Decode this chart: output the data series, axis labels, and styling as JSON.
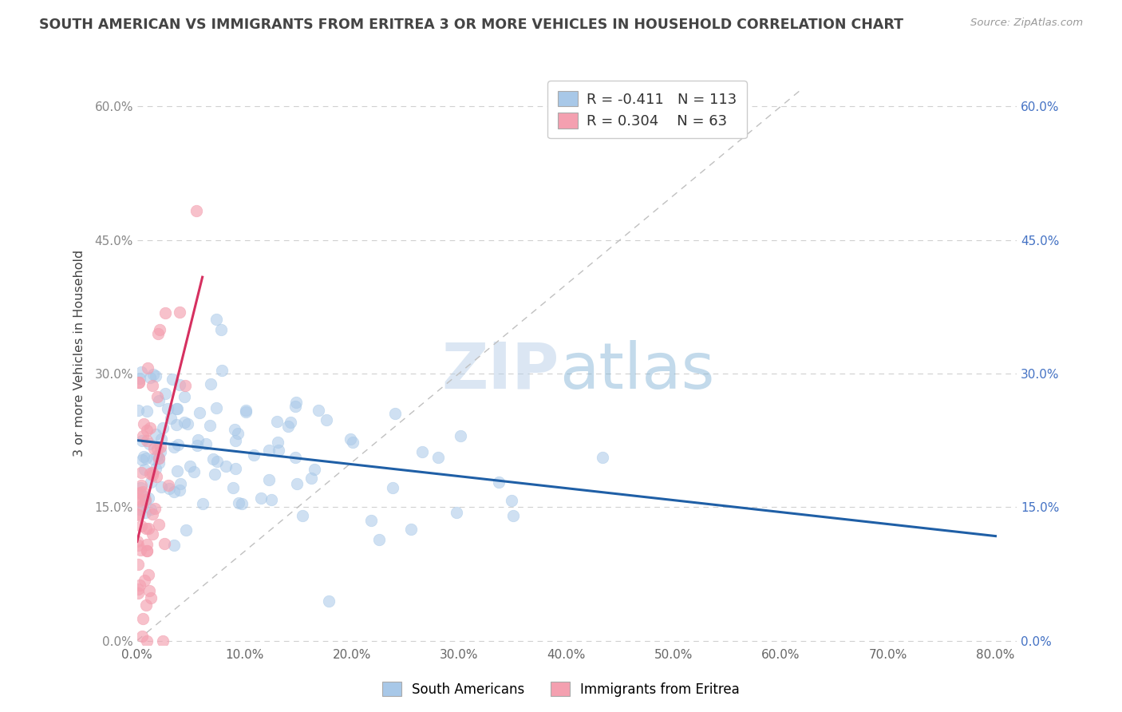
{
  "title": "SOUTH AMERICAN VS IMMIGRANTS FROM ERITREA 3 OR MORE VEHICLES IN HOUSEHOLD CORRELATION CHART",
  "source": "Source: ZipAtlas.com",
  "ylabel_label": "3 or more Vehicles in Household",
  "xlim": [
    0.0,
    0.82
  ],
  "ylim": [
    -0.005,
    0.65
  ],
  "blue_R": -0.411,
  "blue_N": 113,
  "pink_R": 0.304,
  "pink_N": 63,
  "blue_color": "#a8c8e8",
  "pink_color": "#f4a0b0",
  "blue_line_color": "#1f5fa6",
  "pink_line_color": "#d63060",
  "legend_label_blue": "South Americans",
  "legend_label_pink": "Immigrants from Eritrea",
  "watermark_zip": "ZIP",
  "watermark_atlas": "atlas",
  "background_color": "#ffffff",
  "seed": 42,
  "xtick_vals": [
    0.0,
    0.1,
    0.2,
    0.3,
    0.4,
    0.5,
    0.6,
    0.7,
    0.8
  ],
  "ytick_vals": [
    0.0,
    0.15,
    0.3,
    0.45,
    0.6
  ]
}
